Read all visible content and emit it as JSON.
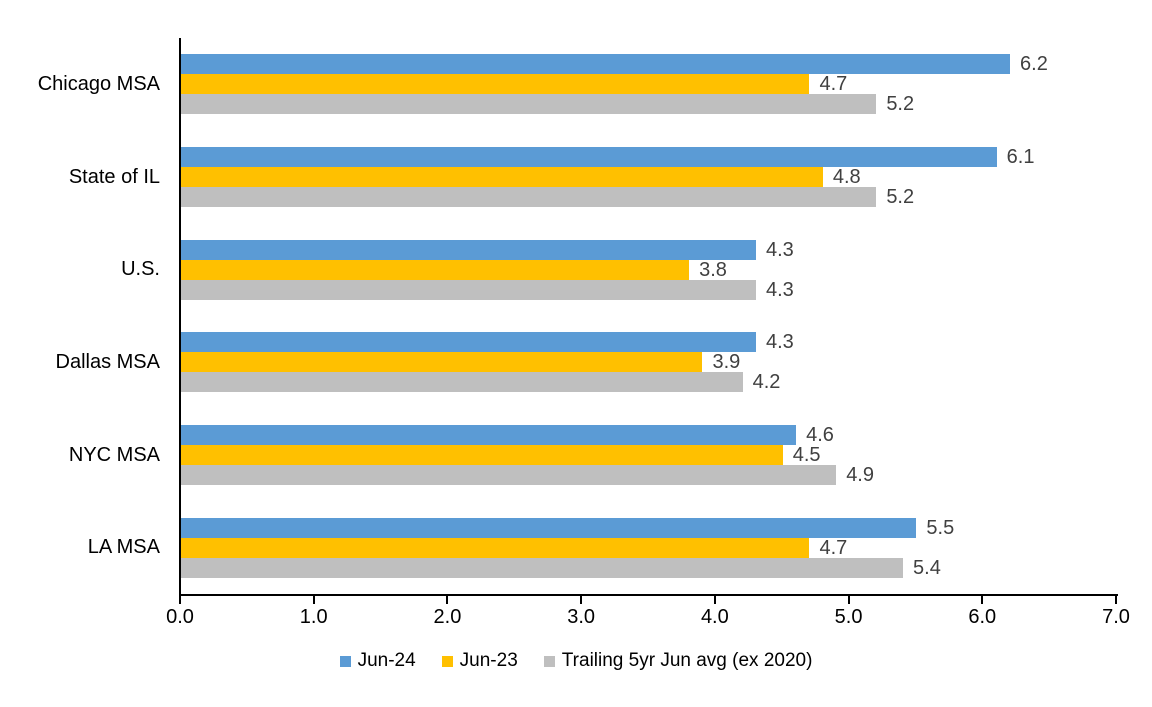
{
  "chart_data": {
    "type": "bar",
    "orientation": "horizontal",
    "title": "",
    "xlabel": "",
    "ylabel": "",
    "categories": [
      "Chicago MSA",
      "State of IL",
      "U.S.",
      "Dallas MSA",
      "NYC MSA",
      "LA MSA"
    ],
    "series": [
      {
        "name": "Jun-24",
        "color": "#5B9BD5",
        "values": [
          6.2,
          6.1,
          4.3,
          4.3,
          4.6,
          5.5
        ]
      },
      {
        "name": "Jun-23",
        "color": "#FFC000",
        "values": [
          4.7,
          4.8,
          3.8,
          3.9,
          4.5,
          4.7
        ]
      },
      {
        "name": "Trailing 5yr Jun avg (ex 2020)",
        "color": "#BFBFBF",
        "values": [
          5.2,
          5.2,
          4.3,
          4.2,
          4.9,
          5.4
        ]
      }
    ],
    "xlim": [
      0,
      7
    ],
    "x_ticks": [
      "0.0",
      "1.0",
      "2.0",
      "3.0",
      "4.0",
      "5.0",
      "6.0",
      "7.0"
    ],
    "grid": false,
    "data_labels": true,
    "data_label_format": "0.1f",
    "legend_position": "bottom",
    "colors": {
      "axis": "#000000",
      "data_label": "#404040",
      "category_label": "#000000"
    }
  }
}
